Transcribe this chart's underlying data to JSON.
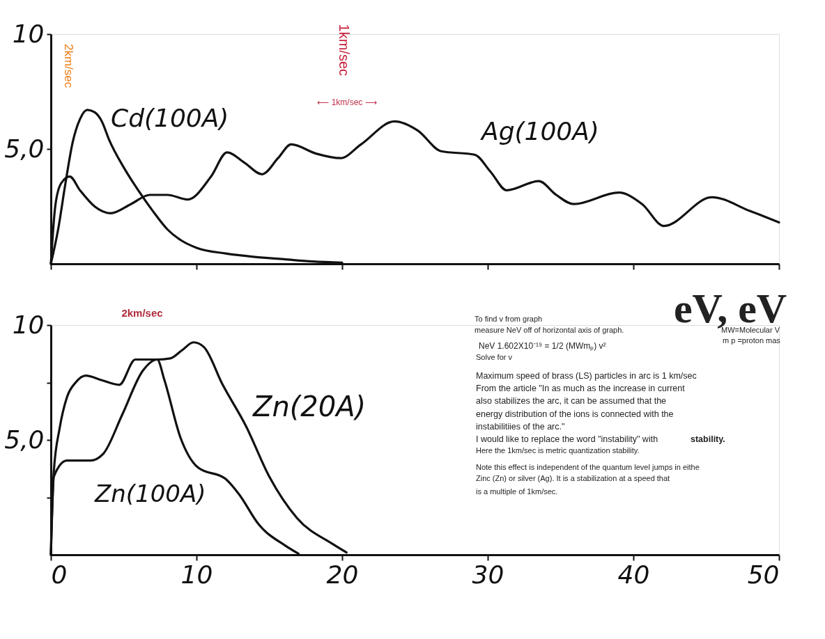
{
  "chart_data": [
    {
      "type": "line",
      "xlim": [
        0,
        50
      ],
      "xticks": [
        {
          "value": 0,
          "label": null
        },
        {
          "value": 10,
          "label": null
        },
        {
          "value": 20,
          "label": null
        },
        {
          "value": 30,
          "label": null
        },
        {
          "value": 40,
          "label": null
        },
        {
          "value": 50,
          "label": null
        }
      ],
      "ylim": [
        0,
        10
      ],
      "yticks": [
        {
          "value": 5,
          "label": "5,0"
        },
        10
      ],
      "tick_labels": "y",
      "grid": false,
      "legend": false,
      "marker": "none",
      "line_style": "solid",
      "series": [
        {
          "name": "Cd(100A)",
          "color": "#111111",
          "x": [
            0,
            0.5,
            1,
            1.5,
            2,
            2.5,
            3,
            3.5,
            4,
            5,
            6,
            7,
            8,
            9,
            10,
            12,
            14,
            16,
            18,
            20
          ],
          "values": [
            0,
            1.5,
            3.5,
            5.3,
            6.3,
            6.7,
            6.6,
            6.2,
            5.4,
            4.2,
            3.2,
            2.3,
            1.5,
            1.0,
            0.7,
            0.45,
            0.3,
            0.2,
            0.1,
            0.05
          ]
        },
        {
          "name": "Ag(100A)",
          "color": "#111111",
          "x": [
            0,
            0.3,
            0.7,
            1.3,
            2,
            3,
            4.1,
            5.5,
            6.8,
            8,
            9.4,
            11,
            12.1,
            13.3,
            14.5,
            15.6,
            16.5,
            18.2,
            19.9,
            21.3,
            23.6,
            25.2,
            26.8,
            29.1,
            30.2,
            31.3,
            33.5,
            34.7,
            35.9,
            39.0,
            40.6,
            42.1,
            45.4,
            48,
            50
          ],
          "values": [
            0,
            2.5,
            3.5,
            3.8,
            3.2,
            2.5,
            2.2,
            2.6,
            3.0,
            3.0,
            2.8,
            3.8,
            4.85,
            4.4,
            3.9,
            4.6,
            5.2,
            4.8,
            4.6,
            5.2,
            6.2,
            5.8,
            4.9,
            4.75,
            4.0,
            3.2,
            3.6,
            3.0,
            2.6,
            3.1,
            2.6,
            1.65,
            2.9,
            2.3,
            1.8
          ]
        }
      ],
      "annotations": [
        "2km/sec",
        "1km/sec",
        "⟵ 1km/sec ⟶"
      ]
    },
    {
      "type": "line",
      "xlim": [
        0,
        50
      ],
      "xticks": [
        0,
        10,
        20,
        30,
        40,
        50
      ],
      "ylim": [
        0,
        10
      ],
      "yticks": [
        {
          "value": 2.5,
          "label": null
        },
        {
          "value": 5,
          "label": "5,0"
        },
        {
          "value": 7.5,
          "label": null
        },
        10
      ],
      "grid": false,
      "legend": false,
      "marker": "none",
      "line_style": "solid",
      "series": [
        {
          "name": "Zn(20A)",
          "color": "#111111",
          "x": [
            0,
            0.2,
            0.6,
            1.1,
            1.7,
            2.4,
            3.5,
            4.7,
            5.8,
            7.3,
            8.2,
            9.0,
            9.8,
            10.5,
            11.8,
            13.4,
            15.0,
            16.9,
            19.4,
            20.3
          ],
          "values": [
            0,
            3.6,
            5.5,
            6.85,
            7.5,
            7.8,
            7.6,
            7.4,
            8.5,
            8.5,
            8.55,
            8.9,
            9.25,
            9.05,
            7.4,
            5.6,
            3.4,
            1.6,
            0.45,
            0.1
          ]
        },
        {
          "name": "Zn(100A)",
          "color": "#111111",
          "x": [
            0,
            0.2,
            1.1,
            2.7,
            3.6,
            4.9,
            6.3,
            7.3,
            7.8,
            8.9,
            10.1,
            12.0,
            12.9,
            14.3,
            16.1,
            17.0
          ],
          "values": [
            0,
            3.4,
            4.1,
            4.1,
            4.4,
            6.1,
            8.0,
            8.5,
            7.6,
            5.1,
            3.8,
            3.3,
            2.65,
            1.3,
            0.4,
            0.05
          ]
        }
      ],
      "annotations": [
        "2km/sec",
        "eV, eV",
        "To find v from graph",
        "measure NeV off of horizontal axis of graph.",
        "NeV 1.602X10⁻¹⁹ = 1/2 (MWmₚ) v²",
        "Solve for v",
        "Maximum speed of brass (LS) particles in arc is 1 km/sec",
        "From the article \"In as much as the increase in current",
        "also stabilizes the arc, it can be assumed that the",
        "energy distribution of the ions is connected with  the",
        "instabilitiies of the arc.\"",
        "I would like to replace the word \"instability\" with",
        "stability.",
        "Here the 1km/sec is metric quantization stability.",
        "Note this effect is independent of the quantum  level jumps in eithe",
        "Zinc (Zn) or silver (Ag). It is a stabilization at a speed that",
        "is a multiple of 1km/sec.",
        "MW=Molecular V",
        "m p =proton mas"
      ]
    }
  ]
}
